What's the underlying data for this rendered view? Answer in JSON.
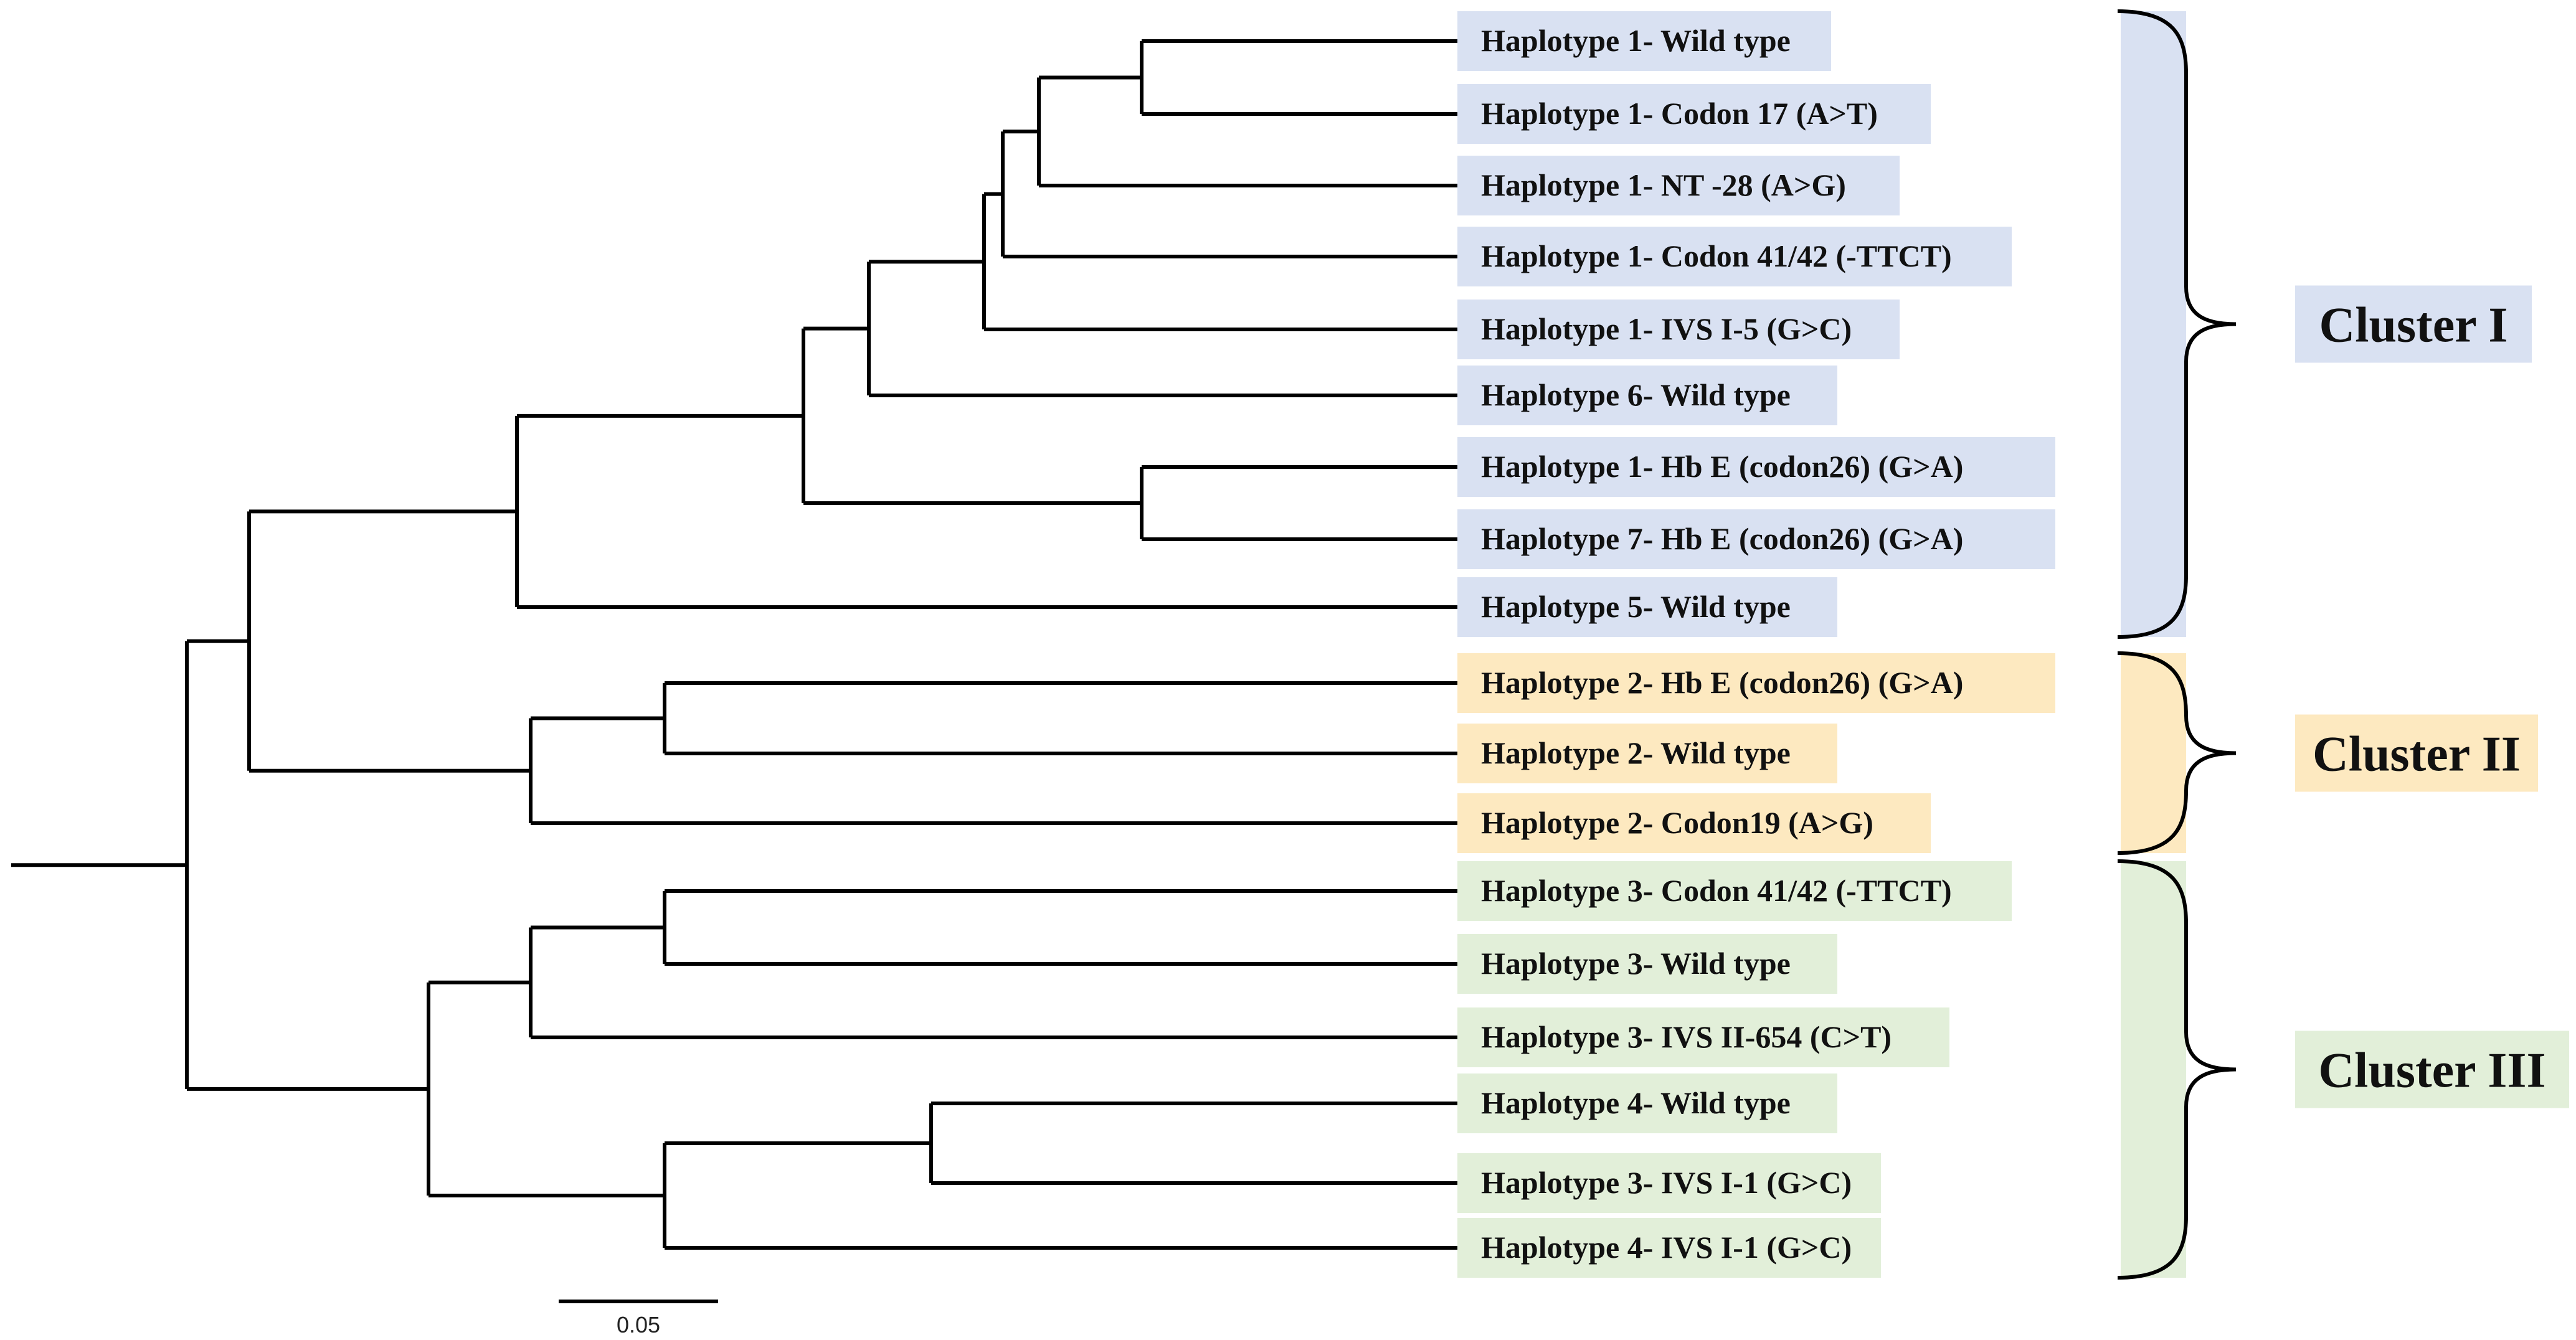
{
  "colors": {
    "cluster_I": "#d9e1f2",
    "cluster_II": "#fde9c0",
    "cluster_III": "#e2efd9",
    "line": "#000000"
  },
  "leaves": [
    {
      "label": "Haplotype 1- Wild type",
      "cluster": "cluster_I"
    },
    {
      "label": "Haplotype 1- Codon 17 (A>T)",
      "cluster": "cluster_I"
    },
    {
      "label": "Haplotype 1- NT -28 (A>G)",
      "cluster": "cluster_I"
    },
    {
      "label": "Haplotype 1- Codon 41/42 (-TTCT)",
      "cluster": "cluster_I"
    },
    {
      "label": "Haplotype 1- IVS I-5 (G>C)",
      "cluster": "cluster_I"
    },
    {
      "label": "Haplotype 6- Wild type",
      "cluster": "cluster_I"
    },
    {
      "label": "Haplotype 1- Hb E (codon26) (G>A)",
      "cluster": "cluster_I"
    },
    {
      "label": "Haplotype 7- Hb E (codon26) (G>A)",
      "cluster": "cluster_I"
    },
    {
      "label": "Haplotype 5- Wild type",
      "cluster": "cluster_I"
    },
    {
      "label": "Haplotype 2- Hb E (codon26) (G>A)",
      "cluster": "cluster_II"
    },
    {
      "label": "Haplotype 2- Wild type",
      "cluster": "cluster_II"
    },
    {
      "label": "Haplotype 2- Codon19 (A>G)",
      "cluster": "cluster_II"
    },
    {
      "label": "Haplotype 3- Codon 41/42 (-TTCT)",
      "cluster": "cluster_III"
    },
    {
      "label": "Haplotype 3- Wild type",
      "cluster": "cluster_III"
    },
    {
      "label": "Haplotype 3- IVS II-654 (C>T)",
      "cluster": "cluster_III"
    },
    {
      "label": "Haplotype 4- Wild type",
      "cluster": "cluster_III"
    },
    {
      "label": "Haplotype 3- IVS I-1 (G>C)",
      "cluster": "cluster_III"
    },
    {
      "label": "Haplotype 4- IVS I-1 (G>C)",
      "cluster": "cluster_III"
    }
  ],
  "clusters": [
    {
      "key": "cluster_I",
      "name": "Cluster I"
    },
    {
      "key": "cluster_II",
      "name": "Cluster II"
    },
    {
      "key": "cluster_III",
      "name": "Cluster III"
    }
  ],
  "scale_bar": {
    "label": "0.05"
  }
}
